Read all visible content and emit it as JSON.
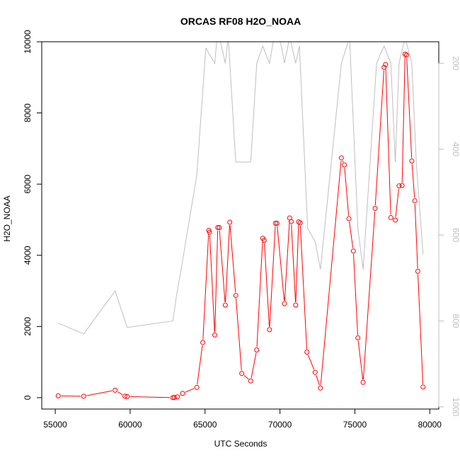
{
  "chart_data": {
    "type": "line",
    "title": "ORCAS RF08 H2O_NOAA",
    "xlabel": "UTC Seconds",
    "ylabel": "H2O_NOAA",
    "xlim": [
      54100,
      80600
    ],
    "ylim": [
      -320,
      10000
    ],
    "x_ticks": [
      55000,
      60000,
      65000,
      70000,
      75000,
      80000
    ],
    "y_ticks": [
      0,
      2000,
      4000,
      6000,
      8000,
      10000
    ],
    "colors": {
      "primary": "#ff0000",
      "secondary": "#bebebe",
      "axis": "#000000"
    },
    "series": [
      {
        "axis": "left",
        "color": "#ff0000",
        "markers": "open-circle",
        "x": [
          55200,
          56900,
          59000,
          59650,
          59800,
          62850,
          62950,
          63150,
          63500,
          64450,
          64850,
          65250,
          65300,
          65650,
          65850,
          65950,
          66350,
          66650,
          67050,
          67450,
          68050,
          68450,
          68850,
          68950,
          69300,
          69700,
          69800,
          70300,
          70650,
          70750,
          71050,
          71250,
          71350,
          71800,
          72350,
          72700,
          74100,
          74300,
          74600,
          74900,
          75200,
          75550,
          76350,
          76950,
          77050,
          77400,
          77700,
          77950,
          78150,
          78350,
          78450,
          78800,
          79000,
          79200,
          79550
        ],
        "y": [
          50,
          40,
          210,
          40,
          30,
          0,
          5,
          20,
          120,
          290,
          1550,
          4700,
          4650,
          1760,
          4780,
          4780,
          2600,
          4930,
          2870,
          680,
          470,
          1340,
          4480,
          4420,
          1910,
          4900,
          4900,
          2640,
          5050,
          4950,
          2600,
          4940,
          4910,
          1280,
          710,
          270,
          6740,
          6540,
          5030,
          4120,
          1680,
          430,
          5320,
          9280,
          9360,
          5060,
          4990,
          5950,
          5960,
          9650,
          9630,
          6650,
          5530,
          3550,
          300
        ]
      },
      {
        "axis": "right",
        "color": "#bebebe",
        "markers": "none",
        "x": [
          55200,
          56900,
          59000,
          59800,
          62850,
          63100,
          63500,
          64450,
          65050,
          65650,
          65850,
          66350,
          66550,
          67050,
          67450,
          68050,
          68450,
          68850,
          69300,
          69700,
          70100,
          70300,
          70650,
          71050,
          71300,
          71850,
          72350,
          72700,
          74100,
          74650,
          75200,
          75550,
          76450,
          76950,
          77400,
          77700,
          77950,
          78350,
          78800,
          79100,
          79550
        ],
        "y": [
          805,
          830,
          730,
          815,
          800,
          740,
          660,
          460,
          165,
          200,
          120,
          200,
          140,
          430,
          430,
          430,
          200,
          160,
          200,
          120,
          160,
          200,
          140,
          200,
          160,
          585,
          615,
          680,
          200,
          140,
          585,
          680,
          200,
          160,
          200,
          430,
          200,
          140,
          200,
          430,
          645
        ]
      }
    ],
    "right_axis": {
      "ticks": [
        200,
        400,
        600,
        800,
        1000
      ],
      "range_top": 150,
      "range_bottom": 1005,
      "color": "#bebebe",
      "inverted": true
    }
  }
}
